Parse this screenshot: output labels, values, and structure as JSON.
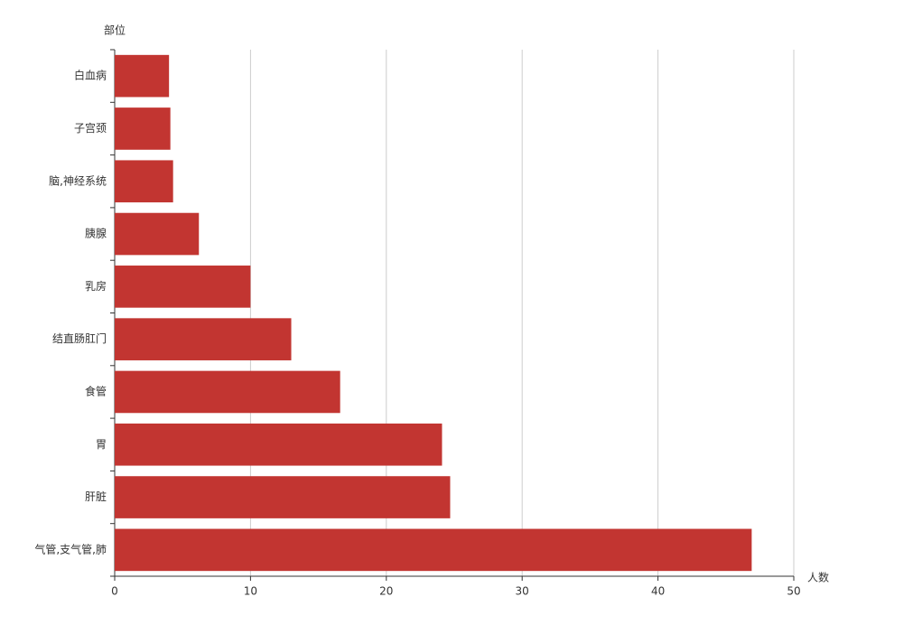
{
  "chart_data": {
    "type": "bar",
    "orientation": "horizontal",
    "y_axis_label": "部位",
    "x_axis_label": "人数",
    "categories": [
      "白血病",
      "子宫颈",
      "脑,神经系统",
      "胰腺",
      "乳房",
      "结直肠肛门",
      "食管",
      "胃",
      "肝脏",
      "气管,支气管,肺"
    ],
    "values": [
      4.0,
      4.1,
      4.3,
      6.2,
      10.0,
      13.0,
      16.6,
      24.1,
      24.7,
      46.9
    ],
    "color": "#c23531",
    "xlim": [
      0,
      50
    ],
    "xticks": [
      0,
      10,
      20,
      30,
      40,
      50
    ],
    "grid": true
  }
}
